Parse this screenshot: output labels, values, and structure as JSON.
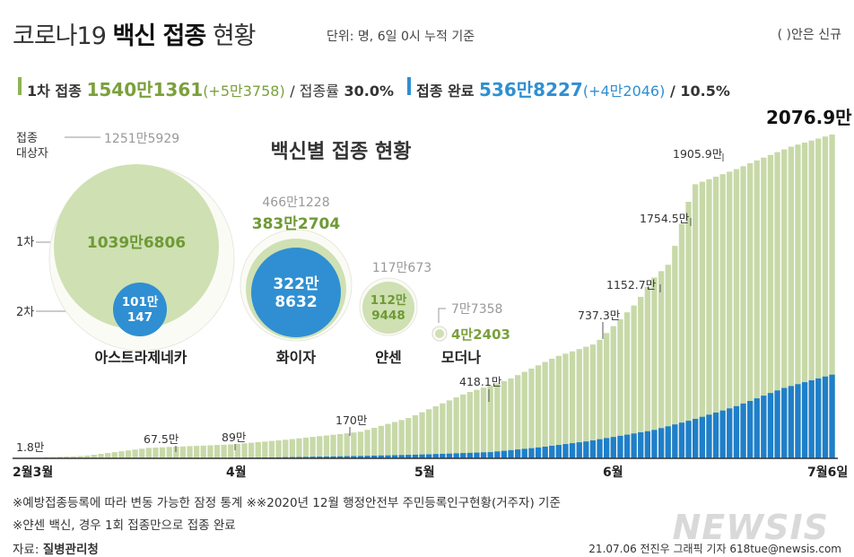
{
  "header": {
    "title_prefix": "코로나19 ",
    "title_bold": "백신 접종",
    "title_suffix": " 현황",
    "unit_note": "단위: 명, 6일 0시 누적 기준",
    "new_note": "( )안은 신규"
  },
  "summary": {
    "first": {
      "label": "1차 접종",
      "value": "1540만1361",
      "delta": "(+5만3758)",
      "rate_label": "/ 접종률",
      "rate": "30.0%"
    },
    "complete": {
      "label": "접종 완료",
      "value": "536만8227",
      "delta": "(+4만2046)",
      "rate": "/ 10.5%"
    }
  },
  "bubbles": {
    "title": "백신별 접종 현황",
    "row_labels": {
      "target": "접종\n대상자",
      "first": "1차",
      "second": "2차"
    },
    "vaccines": [
      {
        "name": "아스트라제네카",
        "target": "1251만5929",
        "first": "1039만6806",
        "second_a": "101만",
        "second_b": "147"
      },
      {
        "name": "화이자",
        "target": "466만1228",
        "first": "383만2704",
        "second_a": "322만",
        "second_b": "8632"
      },
      {
        "name": "얀센",
        "target": "117만673",
        "first_a": "112만",
        "first_b": "9448"
      },
      {
        "name": "모더나",
        "target": "7만7358",
        "first": "4만2403"
      }
    ]
  },
  "chart_data": {
    "type": "bar",
    "title": "",
    "x_ticks": [
      "2월3월",
      "4월",
      "5월",
      "6월",
      "7월6일"
    ],
    "series": [
      {
        "name": "1차 접종",
        "color": "#c8d9a8"
      },
      {
        "name": "접종 완료",
        "color": "#1f7fc9"
      }
    ],
    "annotations": [
      {
        "label": "1.8만",
        "value": 1.8
      },
      {
        "label": "67.5만",
        "value": 67.5
      },
      {
        "label": "89만",
        "value": 89
      },
      {
        "label": "170만",
        "value": 170
      },
      {
        "label": "418.1만",
        "value": 418.1
      },
      {
        "label": "737.3만",
        "value": 737.3
      },
      {
        "label": "1152.7만",
        "value": 1152.7
      },
      {
        "label": "1754.5만",
        "value": 1754.5
      },
      {
        "label": "1905.9만",
        "value": 1905.9
      },
      {
        "label": "2076.9만",
        "value": 2076.9
      }
    ],
    "ylim": [
      0,
      2100
    ]
  },
  "footer": {
    "note1": "※예방접종등록에 따라 변동 가능한 잠정 통계 ※※2020년 12월 행정안전부 주민등록인구현황(거주자) 기준",
    "note2": "※얀센 백신, 경우 1회 접종만으로 접종 완료",
    "source_label": "자료: ",
    "source": "질병관리청",
    "credit": "21.07.06 전진우 그래픽 기자 618tue@newsis.com",
    "logo": "NEWSIS"
  }
}
